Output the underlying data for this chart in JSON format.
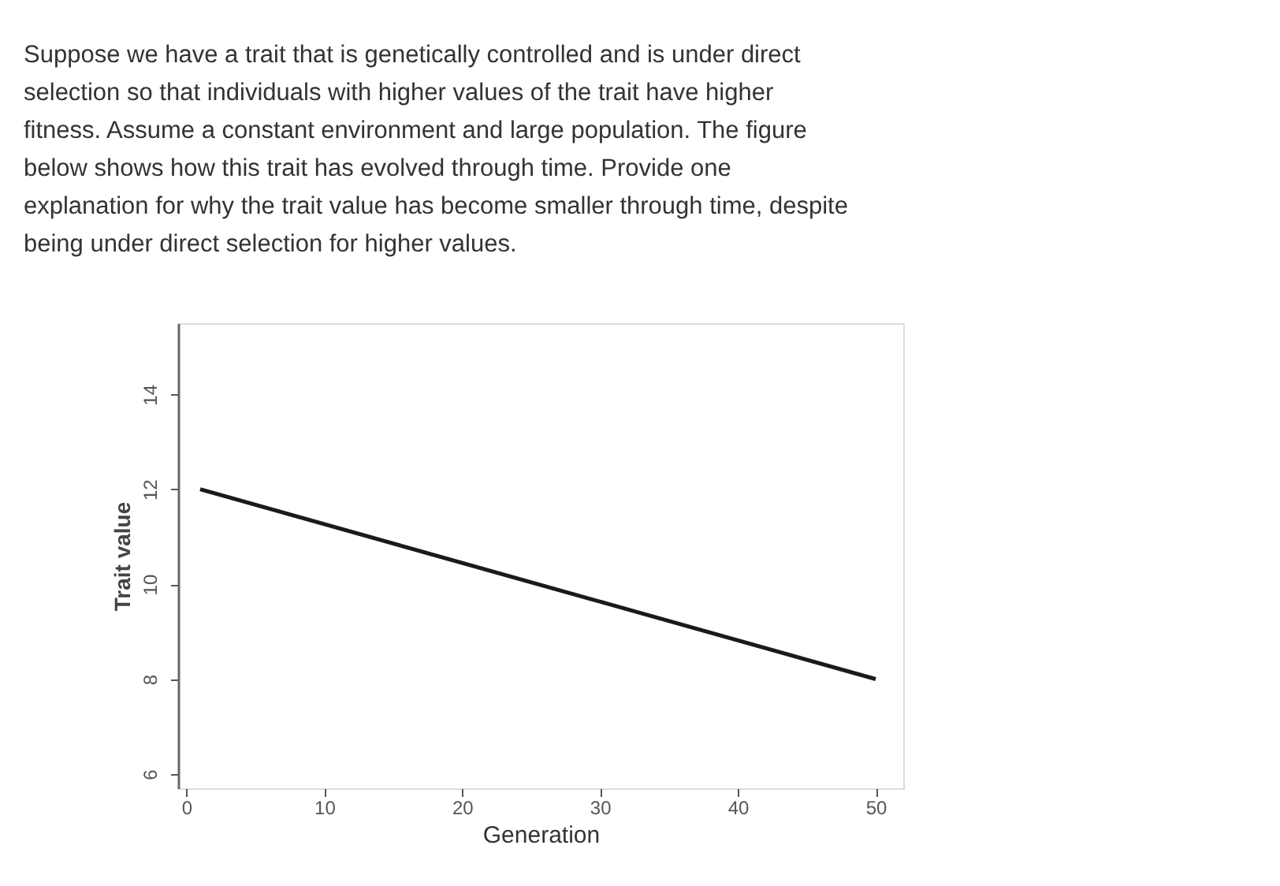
{
  "chart_data": {
    "type": "line",
    "xlabel": "Generation",
    "ylabel": "Trait value",
    "annotations": [
      "Suppose we have a trait that is genetically controlled and is under direct",
      "selection so that individuals with higher values of the trait have higher",
      "fitness. Assume a constant environment and large population. The figure",
      "below shows how this trait has evolved through time. Provide one",
      "explanation for why the trait value has become smaller through time, despite",
      "being under direct selection for higher values."
    ],
    "x": [
      1,
      50
    ],
    "series": [
      {
        "color": "#1a1a1a",
        "values": [
          12,
          8
        ]
      }
    ],
    "xlim": [
      -0.6,
      52
    ],
    "xticks": [
      0,
      10,
      20,
      30,
      40,
      50
    ],
    "ylim": [
      5.7,
      15.5
    ],
    "yticks": [
      6,
      8,
      10,
      12,
      14
    ],
    "grid": false,
    "marker": "none",
    "line_style": "solid"
  }
}
